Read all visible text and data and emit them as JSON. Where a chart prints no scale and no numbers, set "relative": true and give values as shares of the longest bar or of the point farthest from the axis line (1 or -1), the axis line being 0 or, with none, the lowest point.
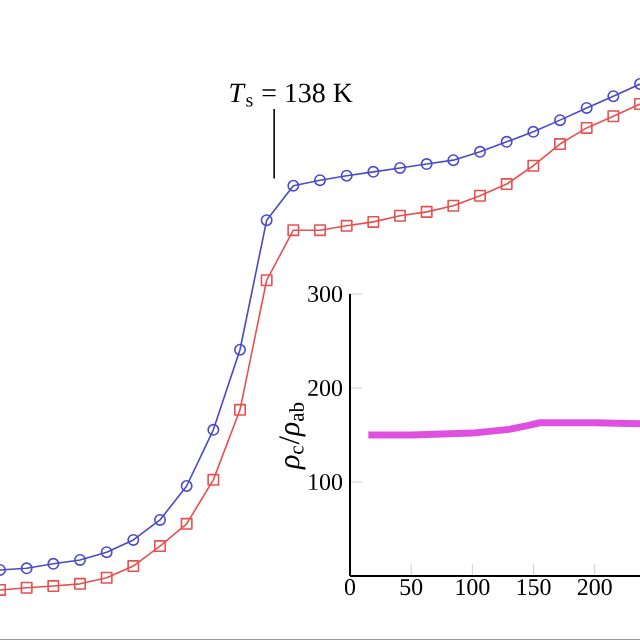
{
  "chart_data": [
    {
      "type": "line",
      "relative": true,
      "categories": [
        null,
        null,
        null,
        null,
        null,
        null,
        null,
        null,
        null,
        null,
        null,
        null,
        null,
        null,
        null,
        null,
        null,
        null,
        null,
        null,
        null,
        null,
        null,
        null,
        null
      ],
      "series": [
        {
          "color": "#4a4ac8",
          "marker": "circle",
          "values": [
            0.126,
            0.129,
            0.137,
            0.144,
            0.158,
            0.18,
            0.216,
            0.277,
            0.378,
            0.522,
            0.755,
            0.817,
            0.827,
            0.835,
            0.842,
            0.849,
            0.856,
            0.863,
            0.878,
            0.896,
            0.914,
            0.935,
            0.957,
            0.978,
            1
          ]
        },
        {
          "color": "#e85050",
          "marker": "square",
          "values": [
            0.09,
            0.094,
            0.097,
            0.101,
            0.112,
            0.133,
            0.169,
            0.209,
            0.288,
            0.414,
            0.647,
            0.737,
            0.737,
            0.745,
            0.752,
            0.763,
            0.77,
            0.781,
            0.799,
            0.82,
            0.853,
            0.892,
            0.921,
            0.942,
            0.964
          ]
        }
      ],
      "annotations": [
        "*T*$_{s}$ = 138 K"
      ]
    },
    {
      "type": "line",
      "x": [
        15,
        50,
        100,
        130,
        145,
        155,
        200,
        237
      ],
      "ylabel": "*ρ*$_{c}$/*ρ*$_{ab}$",
      "series": [
        {
          "color": "#e050e0",
          "values": [
            150,
            150,
            152,
            156,
            160,
            163,
            163,
            162
          ]
        }
      ],
      "xlim": [
        0,
        237
      ],
      "ylim": [
        0,
        300
      ],
      "xticks": [
        0,
        50,
        100,
        150,
        200
      ],
      "yticks": [
        100,
        200,
        300
      ]
    }
  ]
}
